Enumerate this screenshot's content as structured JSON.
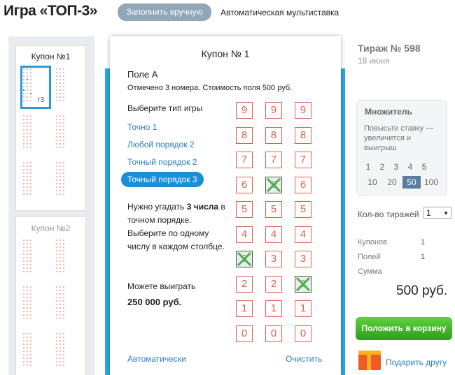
{
  "header": {
    "title": "Игра «ТОП-3»",
    "tabs": [
      "Заполнить вручную",
      "Автоматическая мультиставка"
    ]
  },
  "coupons": [
    {
      "label": "Купон №1",
      "badge": "т3"
    },
    {
      "label": "Купон №2"
    }
  ],
  "ticket": {
    "title": "Купон № 1",
    "field": "Поле A",
    "note": "Отмечено 3 номера. Стоимость поля 500 руб.",
    "choose_label": "Выберите тип игры",
    "game_types": [
      "Точно 1",
      "Любой порядок 2",
      "Точный порядок 2",
      "Точный порядок 3"
    ],
    "selected_type": 3,
    "instruction": [
      "Нужно угадать ",
      "3 числа",
      " в точном порядке. Выберите по одному числу в каждом столбце."
    ],
    "win_label": "Можете выиграть",
    "win_amount": "250 000 руб.",
    "digits": [
      9,
      8,
      7,
      6,
      5,
      4,
      3,
      2,
      1,
      0
    ],
    "marked": [
      3,
      6,
      2
    ],
    "auto_link": "Автоматически",
    "clear_link": "Очистить"
  },
  "draw": {
    "title": "Тираж № 598",
    "date": "18 июня"
  },
  "multiplier": {
    "title": "Множитель",
    "hint": "Повысьте ставку — увеличится и выигрыш",
    "options": [
      1,
      2,
      3,
      4,
      5,
      10,
      20,
      50,
      100
    ],
    "selected": 50
  },
  "draws_count": {
    "label": "Кол-во тиражей",
    "value": "1"
  },
  "summary": {
    "rows": [
      [
        "Купонов",
        "1"
      ],
      [
        "Полей",
        "1"
      ]
    ],
    "sum_label": "Сумма",
    "sum": "500 руб."
  },
  "cart_button": "Положить в корзину",
  "gift_link": "Подарить другу"
}
